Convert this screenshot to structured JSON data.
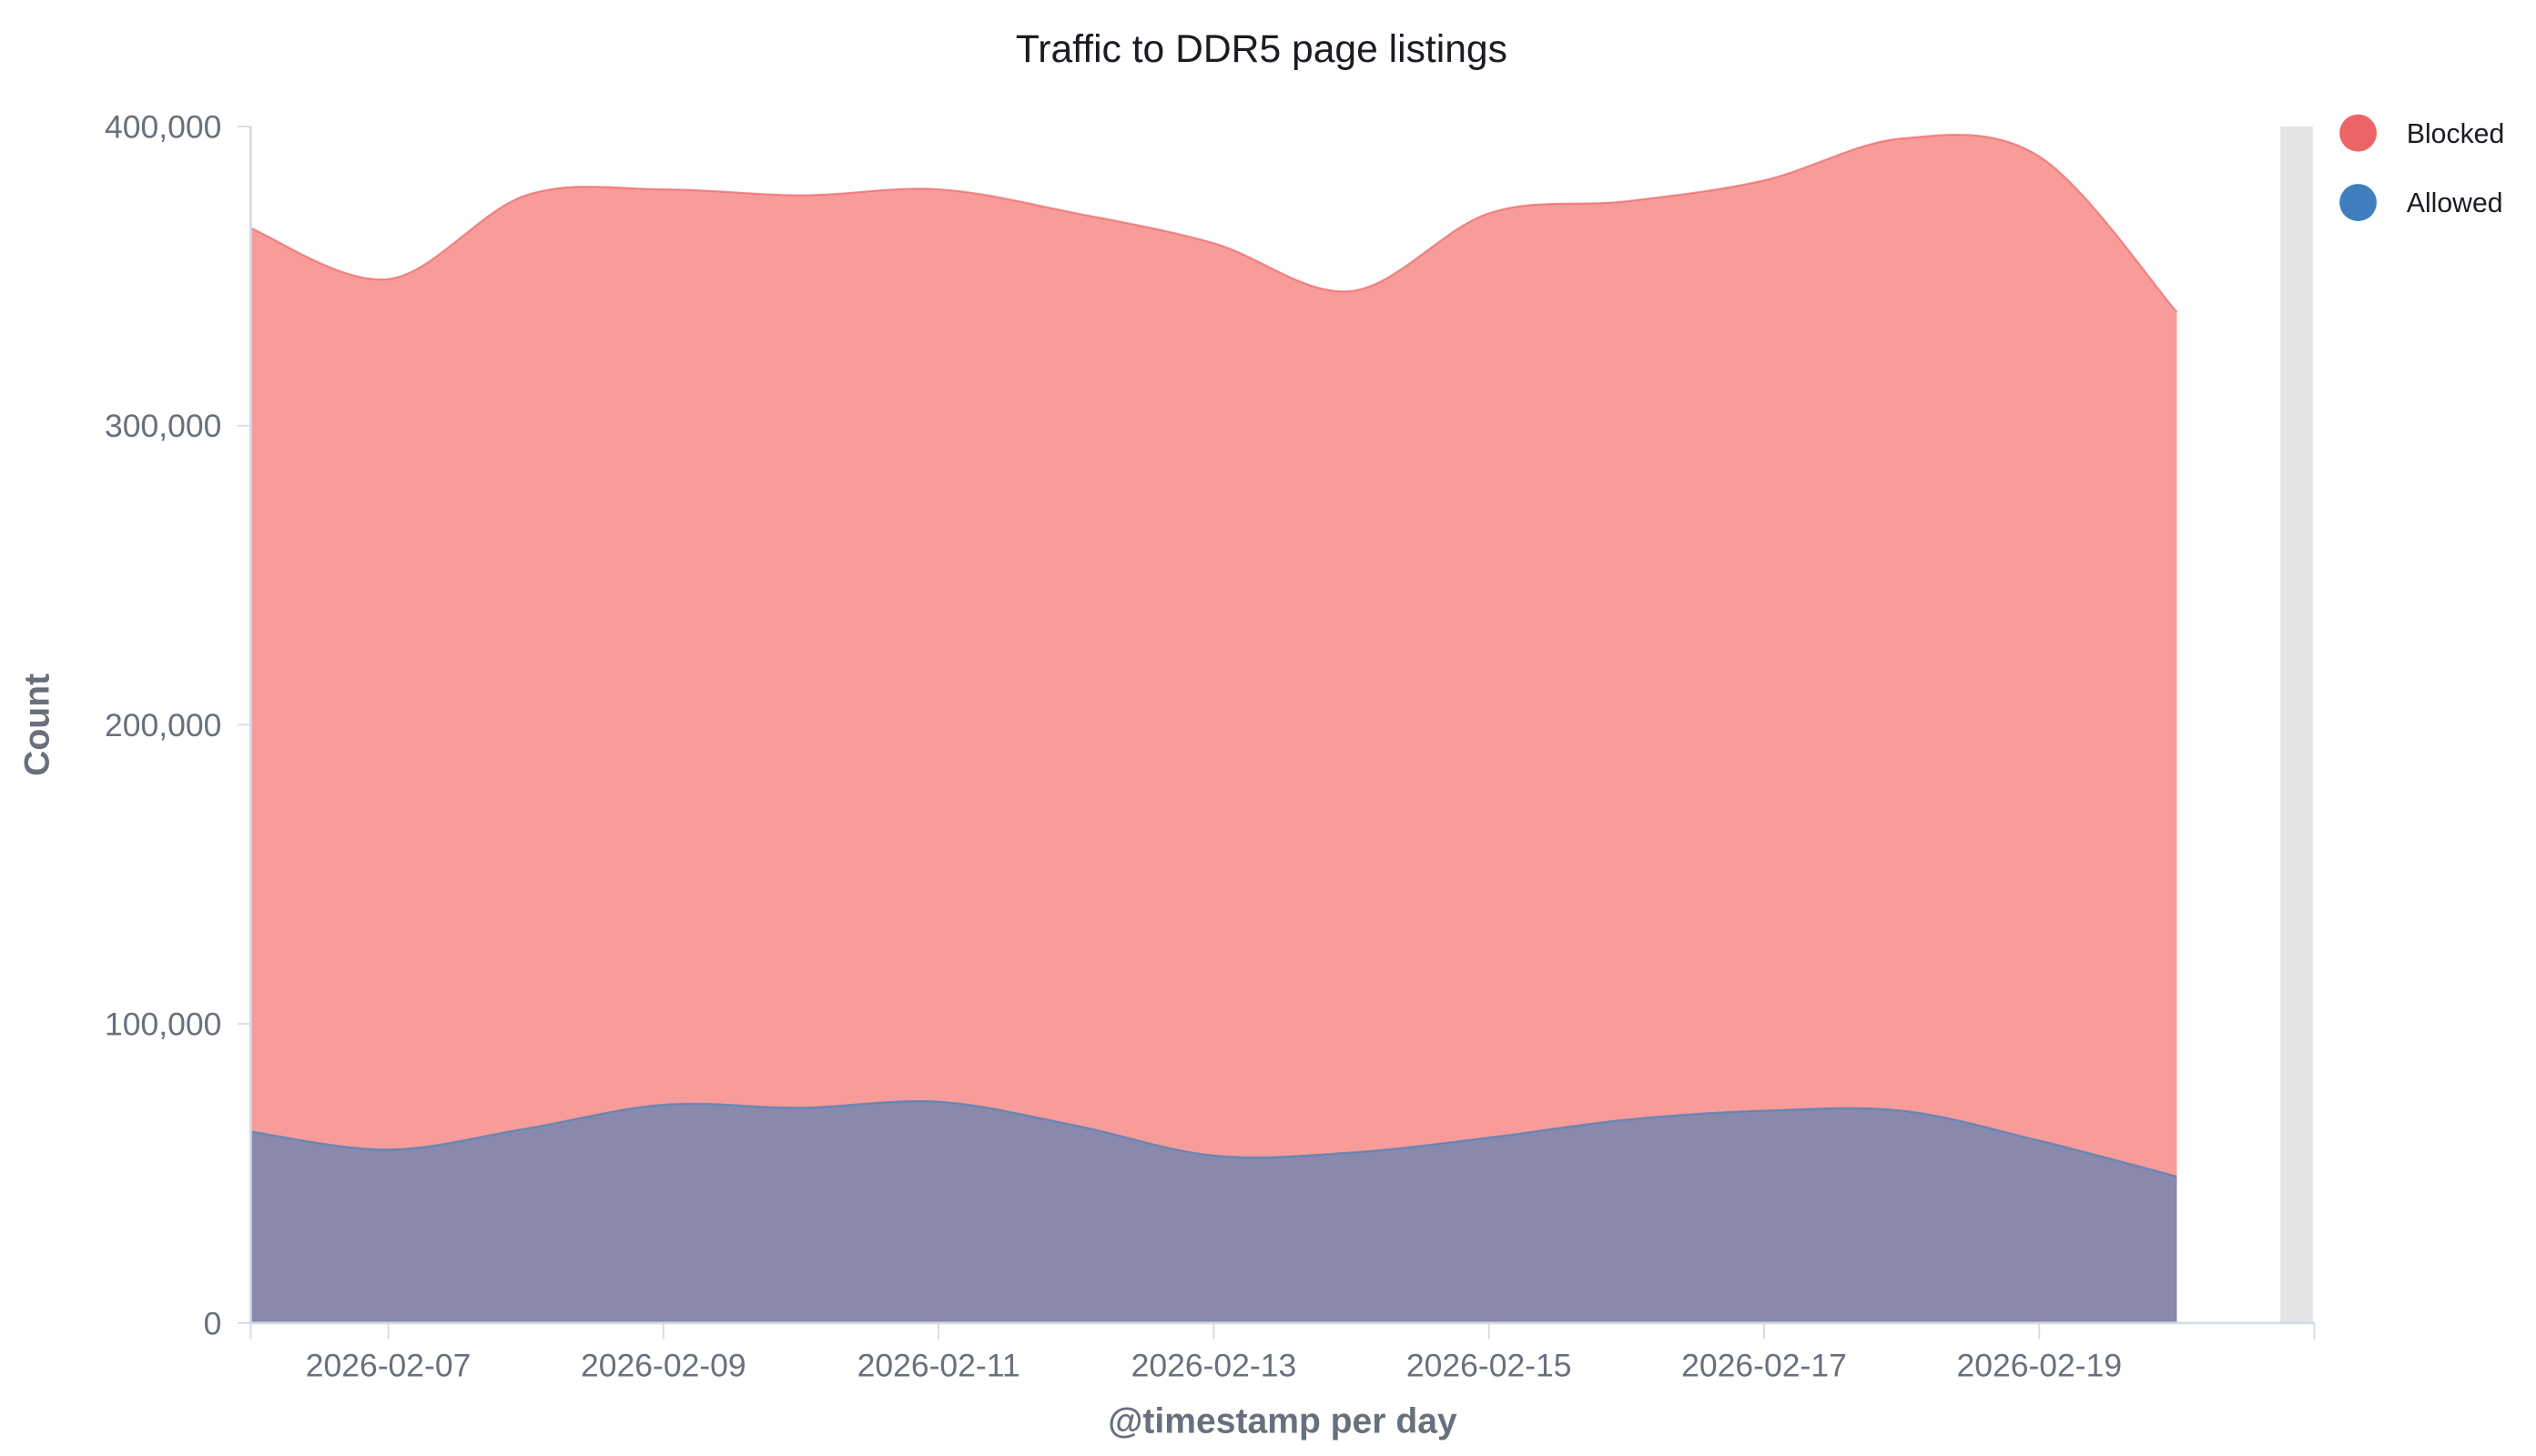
{
  "chart_data": {
    "type": "area",
    "stacked": true,
    "title": "Traffic to DDR5 page listings",
    "xlabel": "@timestamp per day",
    "ylabel": "Count",
    "x": [
      "2026-02-06",
      "2026-02-07",
      "2026-02-08",
      "2026-02-09",
      "2026-02-10",
      "2026-02-11",
      "2026-02-12",
      "2026-02-13",
      "2026-02-14",
      "2026-02-15",
      "2026-02-16",
      "2026-02-17",
      "2026-02-18",
      "2026-02-19",
      "2026-02-20"
    ],
    "x_ticks": [
      "2026-02-07",
      "2026-02-09",
      "2026-02-11",
      "2026-02-13",
      "2026-02-15",
      "2026-02-17",
      "2026-02-19"
    ],
    "xlim": [
      "2026-02-06",
      "2026-02-21"
    ],
    "ylim": [
      0,
      400000
    ],
    "y_ticks": [
      0,
      100000,
      200000,
      300000,
      400000
    ],
    "y_tick_labels": [
      "0",
      "100,000",
      "200,000",
      "300,000",
      "400,000"
    ],
    "grid": false,
    "legend_position": "right",
    "series": [
      {
        "name": "Allowed",
        "color": "#4a7fb8",
        "fill": "#8889ac",
        "values": [
          64000,
          58000,
          65000,
          73000,
          72000,
          74000,
          66000,
          56000,
          57000,
          62000,
          68000,
          71000,
          71000,
          61000,
          49000
        ]
      },
      {
        "name": "Blocked",
        "color": "#ec6466",
        "fill": "#f89c9a",
        "values": [
          302000,
          291000,
          312000,
          306000,
          305000,
          305000,
          305000,
          305000,
          288000,
          309000,
          307000,
          311000,
          325000,
          329000,
          289000
        ]
      }
    ],
    "legend": [
      {
        "name": "Blocked",
        "color": "#ec6466"
      },
      {
        "name": "Allowed",
        "color": "#3f7fbd"
      }
    ]
  }
}
